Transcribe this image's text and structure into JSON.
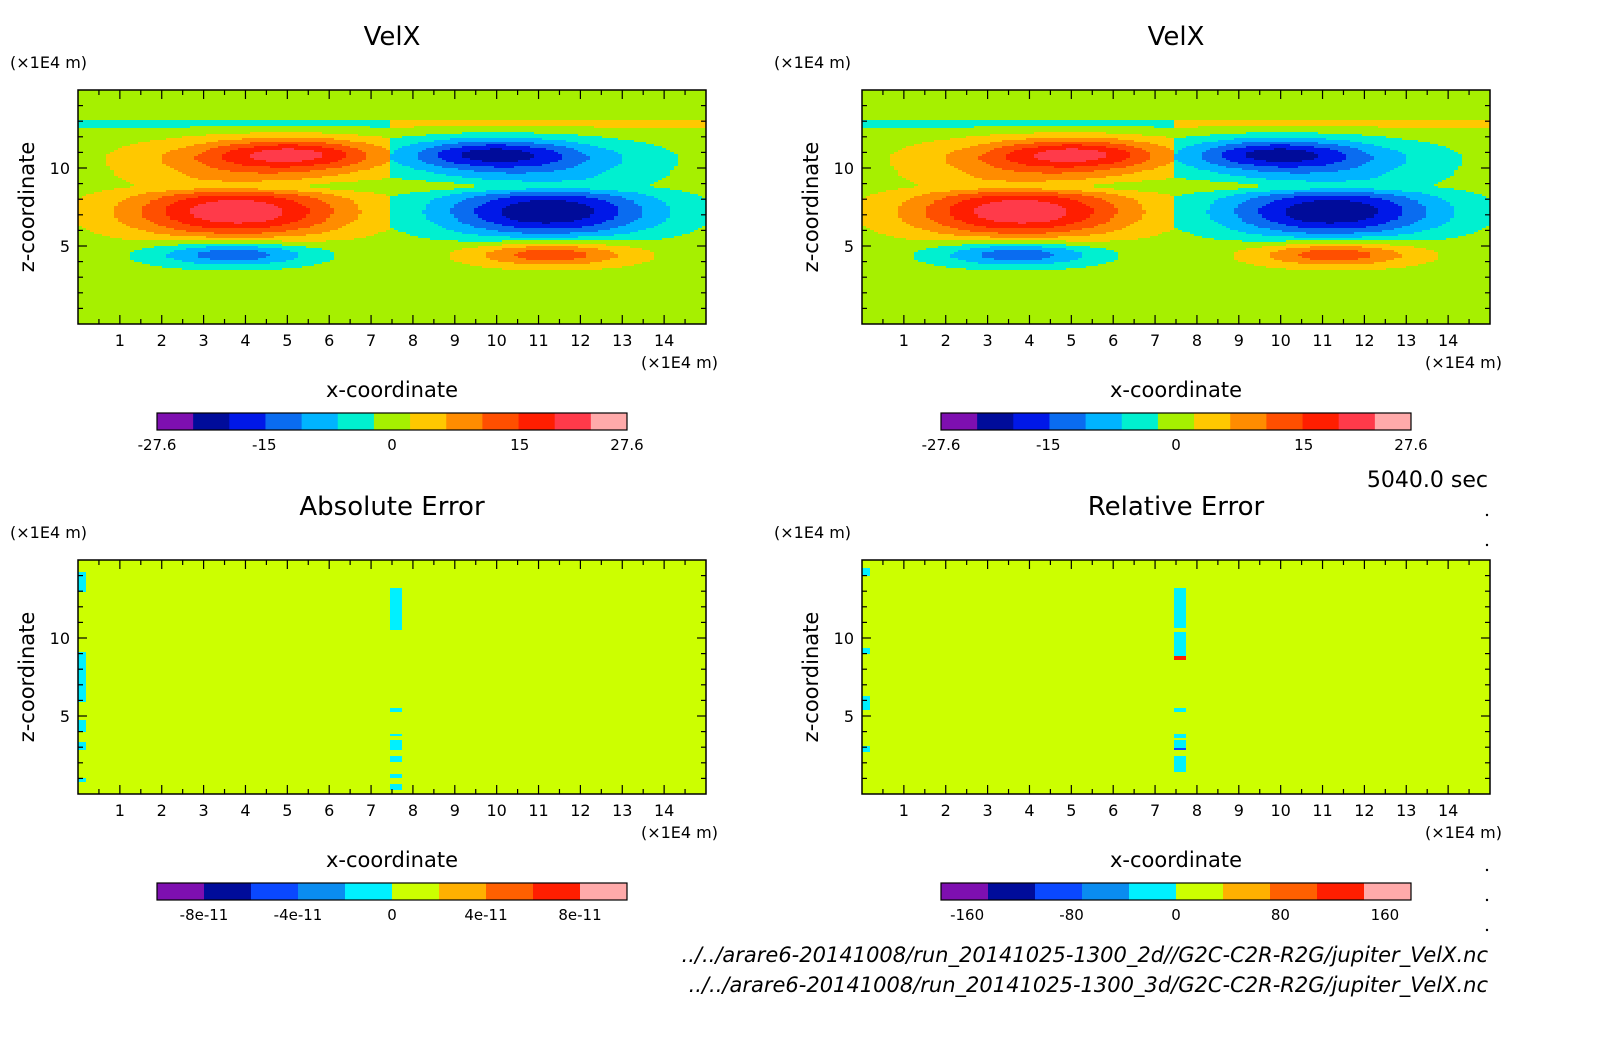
{
  "figure": {
    "time_label": "5040.0 sec",
    "footer_lines": [
      "../../arare6-20141008/run_20141025-1300_2d//G2C-C2R-R2G/jupiter_VelX.nc",
      "../../arare6-20141008/run_20141025-1300_3d/G2C-C2R-R2G/jupiter_VelX.nc"
    ]
  },
  "chart_data": [
    {
      "type": "heatmap",
      "title": "VelX",
      "xlabel": "x-coordinate",
      "ylabel": "z-coordinate",
      "x_unit": "(×1E4 m)",
      "y_unit": "(×1E4 m)",
      "xlim": [
        0,
        15
      ],
      "ylim": [
        0,
        15
      ],
      "x_ticks": [
        1,
        2,
        3,
        4,
        5,
        6,
        7,
        8,
        9,
        10,
        11,
        12,
        13,
        14
      ],
      "y_ticks": [
        5,
        10
      ],
      "field": "velx",
      "colorbar": {
        "colors": [
          "#7e0fb0",
          "#000c9a",
          "#0018e8",
          "#0a6cf0",
          "#00b4ff",
          "#00f0d0",
          "#a6f000",
          "#ffc800",
          "#ff8c00",
          "#ff4f00",
          "#ff1e00",
          "#ff3a4a",
          "#ffaaaa"
        ],
        "tick_labels": [
          "-27.6",
          "-15",
          "0",
          "15",
          "27.6"
        ],
        "tick_values": [
          -27.6,
          -15,
          0,
          15,
          27.6
        ],
        "range": [
          -27.6,
          27.6
        ]
      }
    },
    {
      "type": "heatmap",
      "title": "VelX",
      "xlabel": "x-coordinate",
      "ylabel": "z-coordinate",
      "x_unit": "(×1E4 m)",
      "y_unit": "(×1E4 m)",
      "xlim": [
        0,
        15
      ],
      "ylim": [
        0,
        15
      ],
      "x_ticks": [
        1,
        2,
        3,
        4,
        5,
        6,
        7,
        8,
        9,
        10,
        11,
        12,
        13,
        14
      ],
      "y_ticks": [
        5,
        10
      ],
      "field": "velx",
      "colorbar": {
        "colors": [
          "#7e0fb0",
          "#000c9a",
          "#0018e8",
          "#0a6cf0",
          "#00b4ff",
          "#00f0d0",
          "#a6f000",
          "#ffc800",
          "#ff8c00",
          "#ff4f00",
          "#ff1e00",
          "#ff3a4a",
          "#ffaaaa"
        ],
        "tick_labels": [
          "-27.6",
          "-15",
          "0",
          "15",
          "27.6"
        ],
        "tick_values": [
          -27.6,
          -15,
          0,
          15,
          27.6
        ],
        "range": [
          -27.6,
          27.6
        ]
      }
    },
    {
      "type": "heatmap",
      "title": "Absolute Error",
      "xlabel": "x-coordinate",
      "ylabel": "z-coordinate",
      "x_unit": "(×1E4 m)",
      "y_unit": "(×1E4 m)",
      "xlim": [
        0,
        15
      ],
      "ylim": [
        0,
        15
      ],
      "x_ticks": [
        1,
        2,
        3,
        4,
        5,
        6,
        7,
        8,
        9,
        10,
        11,
        12,
        13,
        14
      ],
      "y_ticks": [
        5,
        10
      ],
      "field": "abs_error",
      "colorbar": {
        "colors": [
          "#7e0fb0",
          "#000c9a",
          "#0a48ff",
          "#0a8cf0",
          "#00f0ff",
          "#ccff00",
          "#ffb000",
          "#ff6000",
          "#ff1e00",
          "#ffaaaa"
        ],
        "tick_labels": [
          "-8e-11",
          "-4e-11",
          "0",
          "4e-11",
          "8e-11"
        ],
        "tick_values": [
          -8e-11,
          -4e-11,
          0,
          4e-11,
          8e-11
        ],
        "range": [
          -1e-10,
          1e-10
        ]
      }
    },
    {
      "type": "heatmap",
      "title": "Relative Error",
      "xlabel": "x-coordinate",
      "ylabel": "z-coordinate",
      "x_unit": "(×1E4 m)",
      "y_unit": "(×1E4 m)",
      "xlim": [
        0,
        15
      ],
      "ylim": [
        0,
        15
      ],
      "x_ticks": [
        1,
        2,
        3,
        4,
        5,
        6,
        7,
        8,
        9,
        10,
        11,
        12,
        13,
        14
      ],
      "y_ticks": [
        5,
        10
      ],
      "field": "rel_error",
      "colorbar": {
        "colors": [
          "#7e0fb0",
          "#000c9a",
          "#0a48ff",
          "#0a8cf0",
          "#00f0ff",
          "#ccff00",
          "#ffb000",
          "#ff6000",
          "#ff1e00",
          "#ffaaaa"
        ],
        "tick_labels": [
          "-160",
          "-80",
          "0",
          "80",
          "160"
        ],
        "tick_values": [
          -160,
          -80,
          0,
          80,
          160
        ],
        "range": [
          -180,
          180
        ]
      }
    }
  ]
}
